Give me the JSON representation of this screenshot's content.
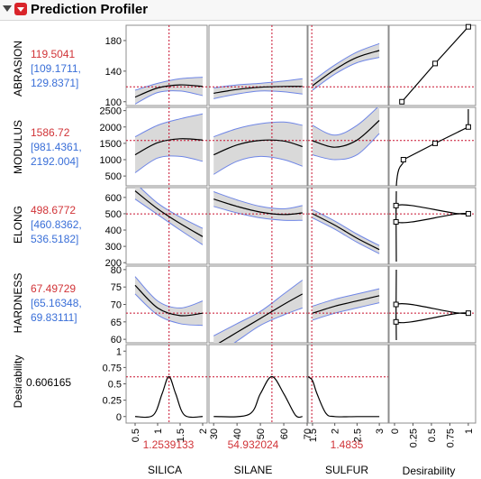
{
  "window": {
    "title": "Prediction Profiler"
  },
  "responses": [
    {
      "name": "ABRASION",
      "value": "119.5041",
      "ci_low": "[109.1711,",
      "ci_high": "129.8371]"
    },
    {
      "name": "MODULUS",
      "value": "1586.72",
      "ci_low": "[981.4361,",
      "ci_high": "2192.004]"
    },
    {
      "name": "ELONG",
      "value": "498.6772",
      "ci_low": "[460.8362,",
      "ci_high": "536.5182]"
    },
    {
      "name": "HARDNESS",
      "value": "67.49729",
      "ci_low": "[65.16348,",
      "ci_high": "69.83111]"
    }
  ],
  "desirability": {
    "name": "Desirability",
    "value": "0.606165"
  },
  "factors": [
    {
      "name": "SILICA",
      "current": "1.2539133",
      "ticks": [
        "0.5",
        "1",
        "1.5",
        "2"
      ]
    },
    {
      "name": "SILANE",
      "current": "54.932024",
      "ticks": [
        "30",
        "40",
        "50",
        "60",
        "70"
      ]
    },
    {
      "name": "SULFUR",
      "current": "1.4835",
      "ticks": [
        "1.5",
        "2",
        "2.5",
        "3"
      ]
    }
  ],
  "desirability_axis": {
    "label": "Desirability",
    "ticks": [
      "0",
      "0.25",
      "0.5",
      "0.75",
      "1"
    ]
  },
  "y_ticks": {
    "ABRASION": [
      "180",
      "140",
      "100"
    ],
    "MODULUS": [
      "2500",
      "2000",
      "1500",
      "1000",
      "500"
    ],
    "ELONG": [
      "600",
      "500",
      "400",
      "300",
      "200"
    ],
    "HARDNESS": [
      "80",
      "75",
      "70",
      "65",
      "60"
    ],
    "Desirability": [
      "1",
      "0.75",
      "0.5",
      "0.25",
      "0"
    ]
  },
  "colors": {
    "current_value": "#d13438",
    "confidence_interval": "#3a6fd8",
    "band_fill": "#d9d9d9",
    "band_edge": "#6f86e6",
    "crosshair": "#c8102e"
  },
  "chart_data": {
    "type": "line",
    "title": "Prediction Profiler",
    "factors": {
      "SILICA": {
        "range": [
          0.3,
          2.1
        ],
        "current": 1.2539133
      },
      "SILANE": {
        "range": [
          28,
          70
        ],
        "current": 54.932024
      },
      "SULFUR": {
        "range": [
          1.4,
          3.2
        ],
        "current": 1.4835
      }
    },
    "profiles": {
      "ABRASION": {
        "ylim": [
          95,
          200
        ],
        "current": 119.5041,
        "SILICA": {
          "x": [
            0.5,
            1.0,
            1.5,
            2.0
          ],
          "y": [
            106,
            118,
            122,
            120
          ],
          "lo": [
            97,
            112,
            114,
            108
          ],
          "hi": [
            115,
            124,
            130,
            132
          ]
        },
        "SILANE": {
          "x": [
            30,
            40,
            50,
            60,
            68
          ],
          "y": [
            111,
            116,
            119,
            120,
            120
          ],
          "lo": [
            104,
            110,
            114,
            113,
            110
          ],
          "hi": [
            118,
            122,
            124,
            127,
            130
          ]
        },
        "SULFUR": {
          "x": [
            1.5,
            2.0,
            2.5,
            3.0
          ],
          "y": [
            121,
            142,
            158,
            167
          ],
          "lo": [
            115,
            136,
            151,
            158
          ],
          "hi": [
            127,
            148,
            165,
            176
          ]
        }
      },
      "MODULUS": {
        "ylim": [
          200,
          2600
        ],
        "current": 1586.72,
        "SILICA": {
          "x": [
            0.5,
            1.0,
            1.5,
            2.0
          ],
          "y": [
            1150,
            1520,
            1640,
            1600
          ],
          "lo": [
            600,
            1050,
            1100,
            950
          ],
          "hi": [
            1700,
            2050,
            2250,
            2400
          ]
        },
        "SILANE": {
          "x": [
            30,
            40,
            50,
            60,
            68
          ],
          "y": [
            1150,
            1450,
            1590,
            1570,
            1400
          ],
          "lo": [
            550,
            950,
            1100,
            1000,
            800
          ],
          "hi": [
            1700,
            1950,
            2100,
            2150,
            2050
          ]
        },
        "SULFUR": {
          "x": [
            1.5,
            2.0,
            2.5,
            3.0
          ],
          "y": [
            1580,
            1380,
            1600,
            2200
          ],
          "lo": [
            1150,
            1000,
            1150,
            1800
          ],
          "hi": [
            2050,
            1750,
            2050,
            2650
          ]
        }
      },
      "ELONG": {
        "ylim": [
          190,
          660
        ],
        "current": 498.6772,
        "SILICA": {
          "x": [
            0.5,
            1.0,
            1.5,
            2.0
          ],
          "y": [
            640,
            530,
            440,
            360
          ],
          "lo": [
            590,
            495,
            400,
            310
          ],
          "hi": [
            690,
            565,
            480,
            410
          ]
        },
        "SILANE": {
          "x": [
            30,
            40,
            50,
            60,
            68
          ],
          "y": [
            590,
            545,
            510,
            495,
            505
          ],
          "lo": [
            545,
            505,
            475,
            460,
            460
          ],
          "hi": [
            635,
            585,
            545,
            530,
            550
          ]
        },
        "SULFUR": {
          "x": [
            1.5,
            2.0,
            2.5,
            3.0
          ],
          "y": [
            500,
            430,
            350,
            280
          ],
          "lo": [
            475,
            405,
            325,
            255
          ],
          "hi": [
            525,
            455,
            375,
            305
          ]
        }
      },
      "HARDNESS": {
        "ylim": [
          59,
          81
        ],
        "current": 67.49729,
        "SILICA": {
          "x": [
            0.5,
            1.0,
            1.5,
            2.0
          ],
          "y": [
            75.5,
            69,
            66.8,
            67.5
          ],
          "lo": [
            73,
            67,
            64.5,
            64
          ],
          "hi": [
            78,
            71,
            69,
            71
          ]
        },
        "SILANE": {
          "x": [
            30,
            40,
            50,
            60,
            68
          ],
          "y": [
            58,
            62,
            66,
            70,
            73
          ],
          "lo": [
            55,
            59.5,
            64,
            67,
            69
          ],
          "hi": [
            61,
            64.5,
            68,
            73,
            77
          ]
        },
        "SULFUR": {
          "x": [
            1.5,
            2.0,
            2.5,
            3.0
          ],
          "y": [
            67.5,
            69.5,
            71,
            72.5
          ],
          "lo": [
            65.5,
            67.5,
            69,
            70.5
          ],
          "hi": [
            69.5,
            71.5,
            73,
            74.5
          ]
        }
      },
      "Desirability": {
        "ylim": [
          -0.1,
          1.1
        ],
        "current": 0.606165,
        "SILICA": {
          "x": [
            0.5,
            0.9,
            1.1,
            1.25,
            1.4,
            1.6,
            2.0
          ],
          "y": [
            0,
            0.02,
            0.35,
            0.61,
            0.35,
            0.02,
            0
          ]
        },
        "SILANE": {
          "x": [
            30,
            45,
            50,
            54.9,
            60,
            65,
            68
          ],
          "y": [
            0,
            0.03,
            0.35,
            0.61,
            0.35,
            0.02,
            0
          ]
        },
        "SULFUR": {
          "x": [
            1.4,
            1.5,
            1.6,
            1.8,
            2.0,
            2.5,
            3.0
          ],
          "y": [
            0.61,
            0.55,
            0.35,
            0.05,
            0,
            0,
            0
          ]
        }
      }
    },
    "desirability_functions": {
      "ABRASION": {
        "points": [
          [
            0.1,
            100
          ],
          [
            0.55,
            150
          ],
          [
            1.0,
            198
          ]
        ],
        "current": 119.5041
      },
      "MODULUS": {
        "points": [
          [
            0.12,
            1000
          ],
          [
            0.55,
            1500
          ],
          [
            1.0,
            2000
          ]
        ],
        "current": 1586.72
      },
      "ELONG": {
        "points": [
          [
            0.02,
            450
          ],
          [
            1.0,
            500
          ],
          [
            0.02,
            550
          ]
        ],
        "current": 498.6772
      },
      "HARDNESS": {
        "points": [
          [
            0.02,
            65
          ],
          [
            1.0,
            67.5
          ],
          [
            0.02,
            70
          ]
        ],
        "current": 67.49729
      }
    }
  }
}
